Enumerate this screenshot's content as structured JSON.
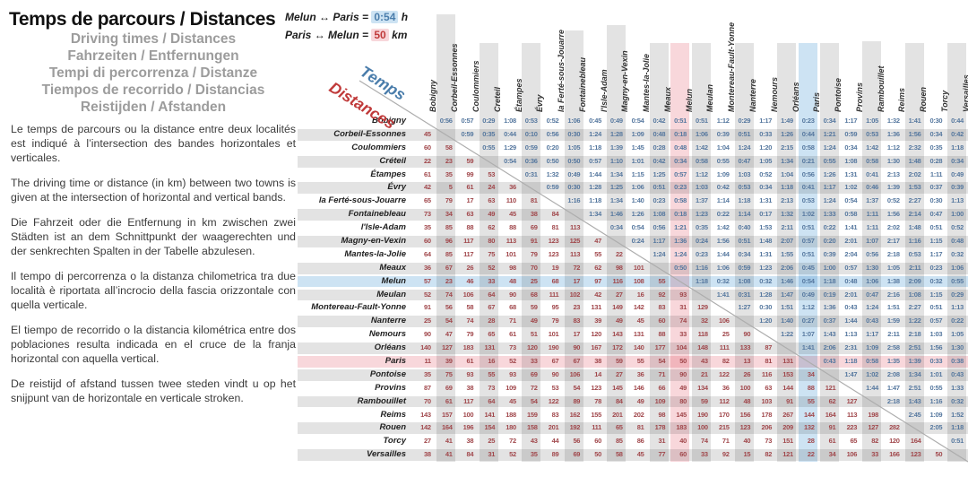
{
  "header": {
    "title": "Temps de parcours / Distances",
    "subtitles": [
      "Driving times / Distances",
      "Fahrzeiten / Entfernungen",
      "Tempi di percorrenza / Distanze",
      "Tiempos de recorrido / Distancias",
      "Reistijden / Afstanden"
    ]
  },
  "paragraphs": [
    "Le temps de parcours ou la distance entre deux localités est indiqué à l’intersection des bandes horizontales et verticales.",
    "The driving time or distance (in km) between two towns is given at the intersection of horizontal and vertical bands.",
    "Die Fahrzeit oder die Entfernung in km zwischen zwei Städten ist an dem Schnittpunkt der waagerechten und der senkrechten Spalten in der Tabelle abzulesen.",
    "Il tempo di percorrenza o la distanza chilometrica tra due località è riportata all’incrocio della fascia orizzontale con quella verticale.",
    "El tiempo de recorrido o la distancia kilométrica entre dos poblaciones resulta indicada en el cruce de la franja horizontal con aquella vertical.",
    "De reistijd of afstand tussen twee steden vindt u op het snijpunt van de horizontale en verticale stroken."
  ],
  "legend": {
    "time_label": "Melun ↔ Paris =",
    "time_value": "0:54",
    "time_unit": "h",
    "dist_label": "Paris ↔ Melun =",
    "dist_value": "50",
    "dist_unit": "km"
  },
  "axis_labels": {
    "time": "Temps",
    "distance": "Distances"
  },
  "colors": {
    "stripe": "#e3e3e3",
    "blue_band": "#cde3f3",
    "pink_band": "#f8d7db",
    "time_text": "#56789f",
    "distance_text": "#a1484c",
    "legend_time_text": "#4a7dab",
    "legend_dist_text": "#c03a3a",
    "diagonal_line": "#adadad"
  },
  "table": {
    "row_cities": [
      "Bobigny",
      "Corbeil-Essonnes",
      "Coulommiers",
      "Créteil",
      "Étampes",
      "Évry",
      "la Ferté-sous-Jouarre",
      "Fontainebleau",
      "l'Isle-Adam",
      "Magny-en-Vexin",
      "Mantes-la-Jolie",
      "Meaux",
      "Melun",
      "Meulan",
      "Montereau-Fault-Yonne",
      "Nanterre",
      "Nemours",
      "Orléans",
      "Paris",
      "Pontoise",
      "Provins",
      "Rambouillet",
      "Reims",
      "Rouen",
      "Torcy",
      "Versailles"
    ],
    "column_cities": [
      "Bobigny",
      "Corbeil-Essonnes",
      "Coulommiers",
      "Creteil",
      "Étampes",
      "Évry",
      "la Ferté-sous-Jouarre",
      "Fontainebleau",
      "l'Isle-Adam",
      "Magny-en-Vexin",
      "Mantes-la-Jolie",
      "Meaux",
      "Melun",
      "Meulan",
      "Montereau-Fault-Yonne",
      "Nanterre",
      "Nemours",
      "Orléans",
      "Paris",
      "Pontoise",
      "Provins",
      "Rambouillet",
      "Reims",
      "Rouen",
      "Torcy",
      "Versailles"
    ],
    "highlight": {
      "blue_row": "Melun",
      "blue_col": "Paris",
      "pink_row": "Paris",
      "pink_col": "Melun"
    },
    "upper_triangle": "driving times (h:mm)",
    "lower_triangle": "distances (km)",
    "matrix": [
      [
        "",
        "0:56",
        "0:57",
        "0:29",
        "1:08",
        "0:53",
        "0:52",
        "1:06",
        "0:45",
        "0:49",
        "0:54",
        "0:42",
        "0:51",
        "0:51",
        "1:12",
        "0:29",
        "1:17",
        "1:49",
        "0:23",
        "0:34",
        "1:17",
        "1:05",
        "1:32",
        "1:41",
        "0:30",
        "0:44"
      ],
      [
        "45",
        "",
        "0:59",
        "0:35",
        "0:44",
        "0:10",
        "0:56",
        "0:30",
        "1:24",
        "1:28",
        "1:09",
        "0:48",
        "0:18",
        "1:06",
        "0:39",
        "0:51",
        "0:33",
        "1:26",
        "0:44",
        "1:21",
        "0:59",
        "0:53",
        "1:36",
        "1:56",
        "0:34",
        "0:42"
      ],
      [
        "60",
        "58",
        "",
        "0:55",
        "1:29",
        "0:59",
        "0:20",
        "1:05",
        "1:18",
        "1:39",
        "1:45",
        "0:28",
        "0:48",
        "1:42",
        "1:04",
        "1:24",
        "1:20",
        "2:15",
        "0:58",
        "1:24",
        "0:34",
        "1:42",
        "1:12",
        "2:32",
        "0:35",
        "1:18"
      ],
      [
        "22",
        "23",
        "59",
        "",
        "0:54",
        "0:36",
        "0:50",
        "0:50",
        "0:57",
        "1:10",
        "1:01",
        "0:42",
        "0:34",
        "0:58",
        "0:55",
        "0:47",
        "1:05",
        "1:34",
        "0:21",
        "0:55",
        "1:08",
        "0:58",
        "1:30",
        "1:48",
        "0:28",
        "0:34"
      ],
      [
        "61",
        "35",
        "99",
        "53",
        "",
        "0:31",
        "1:32",
        "0:49",
        "1:44",
        "1:34",
        "1:15",
        "1:25",
        "0:57",
        "1:12",
        "1:09",
        "1:03",
        "0:52",
        "1:04",
        "0:56",
        "1:26",
        "1:31",
        "0:41",
        "2:13",
        "2:02",
        "1:11",
        "0:49"
      ],
      [
        "42",
        "5",
        "61",
        "24",
        "36",
        "",
        "0:59",
        "0:30",
        "1:28",
        "1:25",
        "1:06",
        "0:51",
        "0:23",
        "1:03",
        "0:42",
        "0:53",
        "0:34",
        "1:18",
        "0:41",
        "1:17",
        "1:02",
        "0:46",
        "1:39",
        "1:53",
        "0:37",
        "0:39"
      ],
      [
        "65",
        "79",
        "17",
        "63",
        "110",
        "81",
        "",
        "1:16",
        "1:18",
        "1:34",
        "1:40",
        "0:23",
        "0:58",
        "1:37",
        "1:14",
        "1:18",
        "1:31",
        "2:13",
        "0:53",
        "1:24",
        "0:54",
        "1:37",
        "0:52",
        "2:27",
        "0:30",
        "1:13"
      ],
      [
        "73",
        "34",
        "63",
        "49",
        "45",
        "38",
        "84",
        "",
        "1:34",
        "1:46",
        "1:26",
        "1:08",
        "0:18",
        "1:23",
        "0:22",
        "1:14",
        "0:17",
        "1:32",
        "1:02",
        "1:33",
        "0:58",
        "1:11",
        "1:56",
        "2:14",
        "0:47",
        "1:00"
      ],
      [
        "35",
        "85",
        "88",
        "62",
        "88",
        "69",
        "81",
        "113",
        "",
        "0:34",
        "0:54",
        "0:56",
        "1:21",
        "0:35",
        "1:42",
        "0:40",
        "1:53",
        "2:11",
        "0:51",
        "0:22",
        "1:41",
        "1:11",
        "2:02",
        "1:48",
        "0:51",
        "0:52"
      ],
      [
        "60",
        "96",
        "117",
        "80",
        "113",
        "91",
        "123",
        "125",
        "47",
        "",
        "0:24",
        "1:17",
        "1:36",
        "0:24",
        "1:56",
        "0:51",
        "1:48",
        "2:07",
        "0:57",
        "0:20",
        "2:01",
        "1:07",
        "2:17",
        "1:16",
        "1:15",
        "0:48"
      ],
      [
        "64",
        "85",
        "117",
        "75",
        "101",
        "79",
        "123",
        "113",
        "55",
        "22",
        "",
        "1:24",
        "1:24",
        "0:23",
        "1:44",
        "0:34",
        "1:31",
        "1:55",
        "0:51",
        "0:39",
        "2:04",
        "0:56",
        "2:18",
        "0:53",
        "1:17",
        "0:32"
      ],
      [
        "36",
        "67",
        "26",
        "52",
        "98",
        "70",
        "19",
        "72",
        "62",
        "98",
        "101",
        "",
        "0:50",
        "1:16",
        "1:06",
        "0:59",
        "1:23",
        "2:06",
        "0:45",
        "1:00",
        "0:57",
        "1:30",
        "1:05",
        "2:11",
        "0:23",
        "1:06"
      ],
      [
        "57",
        "23",
        "46",
        "33",
        "48",
        "25",
        "68",
        "17",
        "97",
        "116",
        "108",
        "55",
        "",
        "1:18",
        "0:32",
        "1:08",
        "0:32",
        "1:46",
        "0:54",
        "1:18",
        "0:48",
        "1:06",
        "1:38",
        "2:09",
        "0:32",
        "0:55"
      ],
      [
        "52",
        "74",
        "106",
        "64",
        "90",
        "68",
        "111",
        "102",
        "42",
        "27",
        "16",
        "92",
        "93",
        "",
        "1:41",
        "0:31",
        "1:28",
        "1:47",
        "0:49",
        "0:19",
        "2:01",
        "0:47",
        "2:16",
        "1:08",
        "1:15",
        "0:29"
      ],
      [
        "91",
        "56",
        "58",
        "67",
        "68",
        "59",
        "95",
        "23",
        "131",
        "149",
        "142",
        "83",
        "31",
        "129",
        "",
        "1:27",
        "0:30",
        "1:51",
        "1:12",
        "1:36",
        "0:43",
        "1:24",
        "1:51",
        "2:27",
        "0:51",
        "1:13"
      ],
      [
        "25",
        "54",
        "74",
        "28",
        "71",
        "49",
        "79",
        "83",
        "39",
        "49",
        "45",
        "60",
        "74",
        "32",
        "106",
        "",
        "1:20",
        "1:40",
        "0:27",
        "0:37",
        "1:44",
        "0:43",
        "1:59",
        "1:22",
        "0:57",
        "0:22"
      ],
      [
        "90",
        "47",
        "79",
        "65",
        "61",
        "51",
        "101",
        "17",
        "120",
        "143",
        "131",
        "88",
        "33",
        "118",
        "25",
        "90",
        "",
        "1:22",
        "1:07",
        "1:43",
        "1:13",
        "1:17",
        "2:11",
        "2:18",
        "1:03",
        "1:05"
      ],
      [
        "140",
        "127",
        "183",
        "131",
        "73",
        "120",
        "190",
        "90",
        "167",
        "172",
        "140",
        "177",
        "104",
        "148",
        "111",
        "133",
        "87",
        "",
        "1:41",
        "2:06",
        "2:31",
        "1:09",
        "2:58",
        "2:51",
        "1:56",
        "1:30"
      ],
      [
        "11",
        "39",
        "61",
        "16",
        "52",
        "33",
        "67",
        "67",
        "38",
        "59",
        "55",
        "54",
        "50",
        "43",
        "82",
        "13",
        "81",
        "131",
        "",
        "0:43",
        "1:18",
        "0:58",
        "1:35",
        "1:39",
        "0:33",
        "0:38"
      ],
      [
        "35",
        "75",
        "93",
        "55",
        "93",
        "69",
        "90",
        "106",
        "14",
        "27",
        "36",
        "71",
        "90",
        "21",
        "122",
        "26",
        "116",
        "153",
        "34",
        "",
        "1:47",
        "1:02",
        "2:08",
        "1:34",
        "1:01",
        "0:43"
      ],
      [
        "87",
        "69",
        "38",
        "73",
        "109",
        "72",
        "53",
        "54",
        "123",
        "145",
        "146",
        "66",
        "49",
        "134",
        "36",
        "100",
        "63",
        "144",
        "88",
        "121",
        "",
        "1:44",
        "1:47",
        "2:51",
        "0:55",
        "1:33"
      ],
      [
        "70",
        "61",
        "117",
        "64",
        "45",
        "54",
        "122",
        "89",
        "78",
        "84",
        "49",
        "109",
        "80",
        "59",
        "112",
        "48",
        "103",
        "91",
        "55",
        "62",
        "127",
        "",
        "2:18",
        "1:43",
        "1:16",
        "0:32"
      ],
      [
        "143",
        "157",
        "100",
        "141",
        "188",
        "159",
        "83",
        "162",
        "155",
        "201",
        "202",
        "98",
        "145",
        "190",
        "170",
        "156",
        "178",
        "267",
        "144",
        "164",
        "113",
        "198",
        "",
        "2:45",
        "1:09",
        "1:52"
      ],
      [
        "142",
        "164",
        "196",
        "154",
        "180",
        "158",
        "201",
        "192",
        "111",
        "65",
        "81",
        "178",
        "183",
        "100",
        "215",
        "123",
        "206",
        "209",
        "132",
        "91",
        "223",
        "127",
        "282",
        "",
        "2:05",
        "1:18"
      ],
      [
        "27",
        "41",
        "38",
        "25",
        "72",
        "43",
        "44",
        "56",
        "60",
        "85",
        "86",
        "31",
        "40",
        "74",
        "71",
        "40",
        "73",
        "151",
        "28",
        "61",
        "65",
        "82",
        "120",
        "164",
        "",
        "0:51"
      ],
      [
        "38",
        "41",
        "84",
        "31",
        "52",
        "35",
        "89",
        "69",
        "50",
        "58",
        "45",
        "77",
        "60",
        "33",
        "92",
        "15",
        "82",
        "121",
        "22",
        "34",
        "106",
        "33",
        "166",
        "123",
        "50",
        ""
      ]
    ]
  }
}
